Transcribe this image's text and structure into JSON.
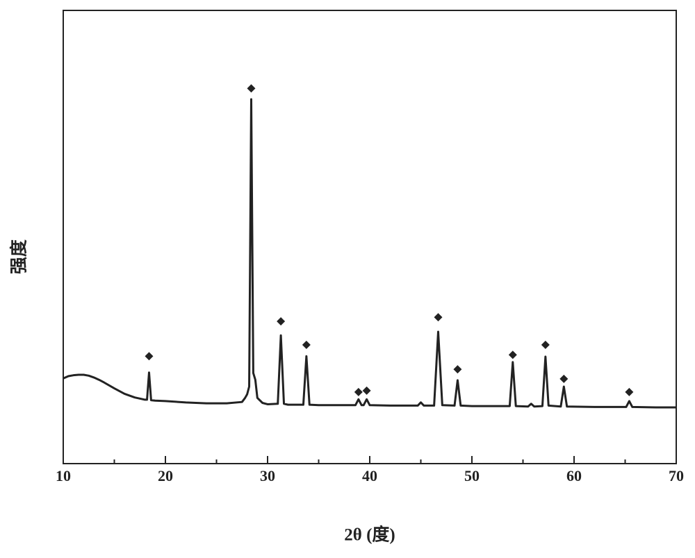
{
  "chart_data": {
    "type": "line",
    "xlabel": "2θ (度)",
    "ylabel": "强度",
    "x": [
      10,
      10.5,
      11,
      11.5,
      12,
      12.5,
      13,
      13.5,
      14,
      15,
      16,
      17,
      18,
      18.2,
      18.4,
      18.6,
      19,
      20,
      22,
      24,
      26,
      27.5,
      27.8,
      28.0,
      28.2,
      28.4,
      28.6,
      28.8,
      29.0,
      29.5,
      30,
      31.0,
      31.3,
      31.6,
      32,
      33.5,
      33.8,
      34.1,
      35,
      38.6,
      38.9,
      39.2,
      39.4,
      39.7,
      40.0,
      42,
      44.7,
      45.0,
      45.3,
      46.3,
      46.7,
      47.1,
      48.3,
      48.6,
      48.9,
      50,
      52,
      53.7,
      54.0,
      54.3,
      55.5,
      55.8,
      56.1,
      56.9,
      57.2,
      57.5,
      58.7,
      59.0,
      59.3,
      62,
      65.1,
      65.4,
      65.7,
      68,
      70
    ],
    "series": [
      {
        "color": "#222222",
        "values": [
          18.8,
          19.3,
          19.5,
          19.6,
          19.6,
          19.4,
          19.0,
          18.5,
          17.9,
          16.6,
          15.4,
          14.6,
          14.1,
          14.1,
          20.1,
          14.0,
          13.9,
          13.8,
          13.5,
          13.3,
          13.3,
          13.6,
          14.5,
          15.3,
          17.0,
          80.4,
          20,
          18.5,
          14.5,
          13.4,
          13.1,
          13.2,
          28.3,
          13.2,
          13.0,
          13.0,
          23.7,
          13.0,
          12.9,
          12.9,
          14.2,
          12.9,
          12.9,
          14.2,
          12.9,
          12.8,
          12.8,
          13.5,
          12.8,
          12.8,
          29.1,
          12.9,
          12.8,
          18.4,
          12.8,
          12.7,
          12.7,
          12.7,
          22.4,
          12.7,
          12.6,
          13.2,
          12.6,
          12.7,
          23.6,
          12.8,
          12.6,
          17.0,
          12.6,
          12.5,
          12.5,
          13.8,
          12.5,
          12.4,
          12.4
        ]
      }
    ],
    "markers": {
      "symbol": "diamond",
      "color": "#222222",
      "x": [
        18.4,
        28.4,
        31.3,
        33.8,
        38.9,
        39.7,
        46.7,
        48.6,
        54.0,
        57.2,
        59.0,
        65.4
      ],
      "y": [
        23.7,
        82.8,
        31.4,
        26.2,
        15.8,
        16.1,
        32.3,
        20.8,
        24.0,
        26.2,
        18.7,
        15.8
      ]
    },
    "xlim": [
      10,
      70
    ],
    "ylim": [
      0,
      100
    ],
    "xticks": [
      10,
      20,
      30,
      40,
      50,
      60,
      70
    ],
    "xminorticks": [
      15,
      25,
      35,
      45,
      55,
      65
    ],
    "grid": false
  }
}
